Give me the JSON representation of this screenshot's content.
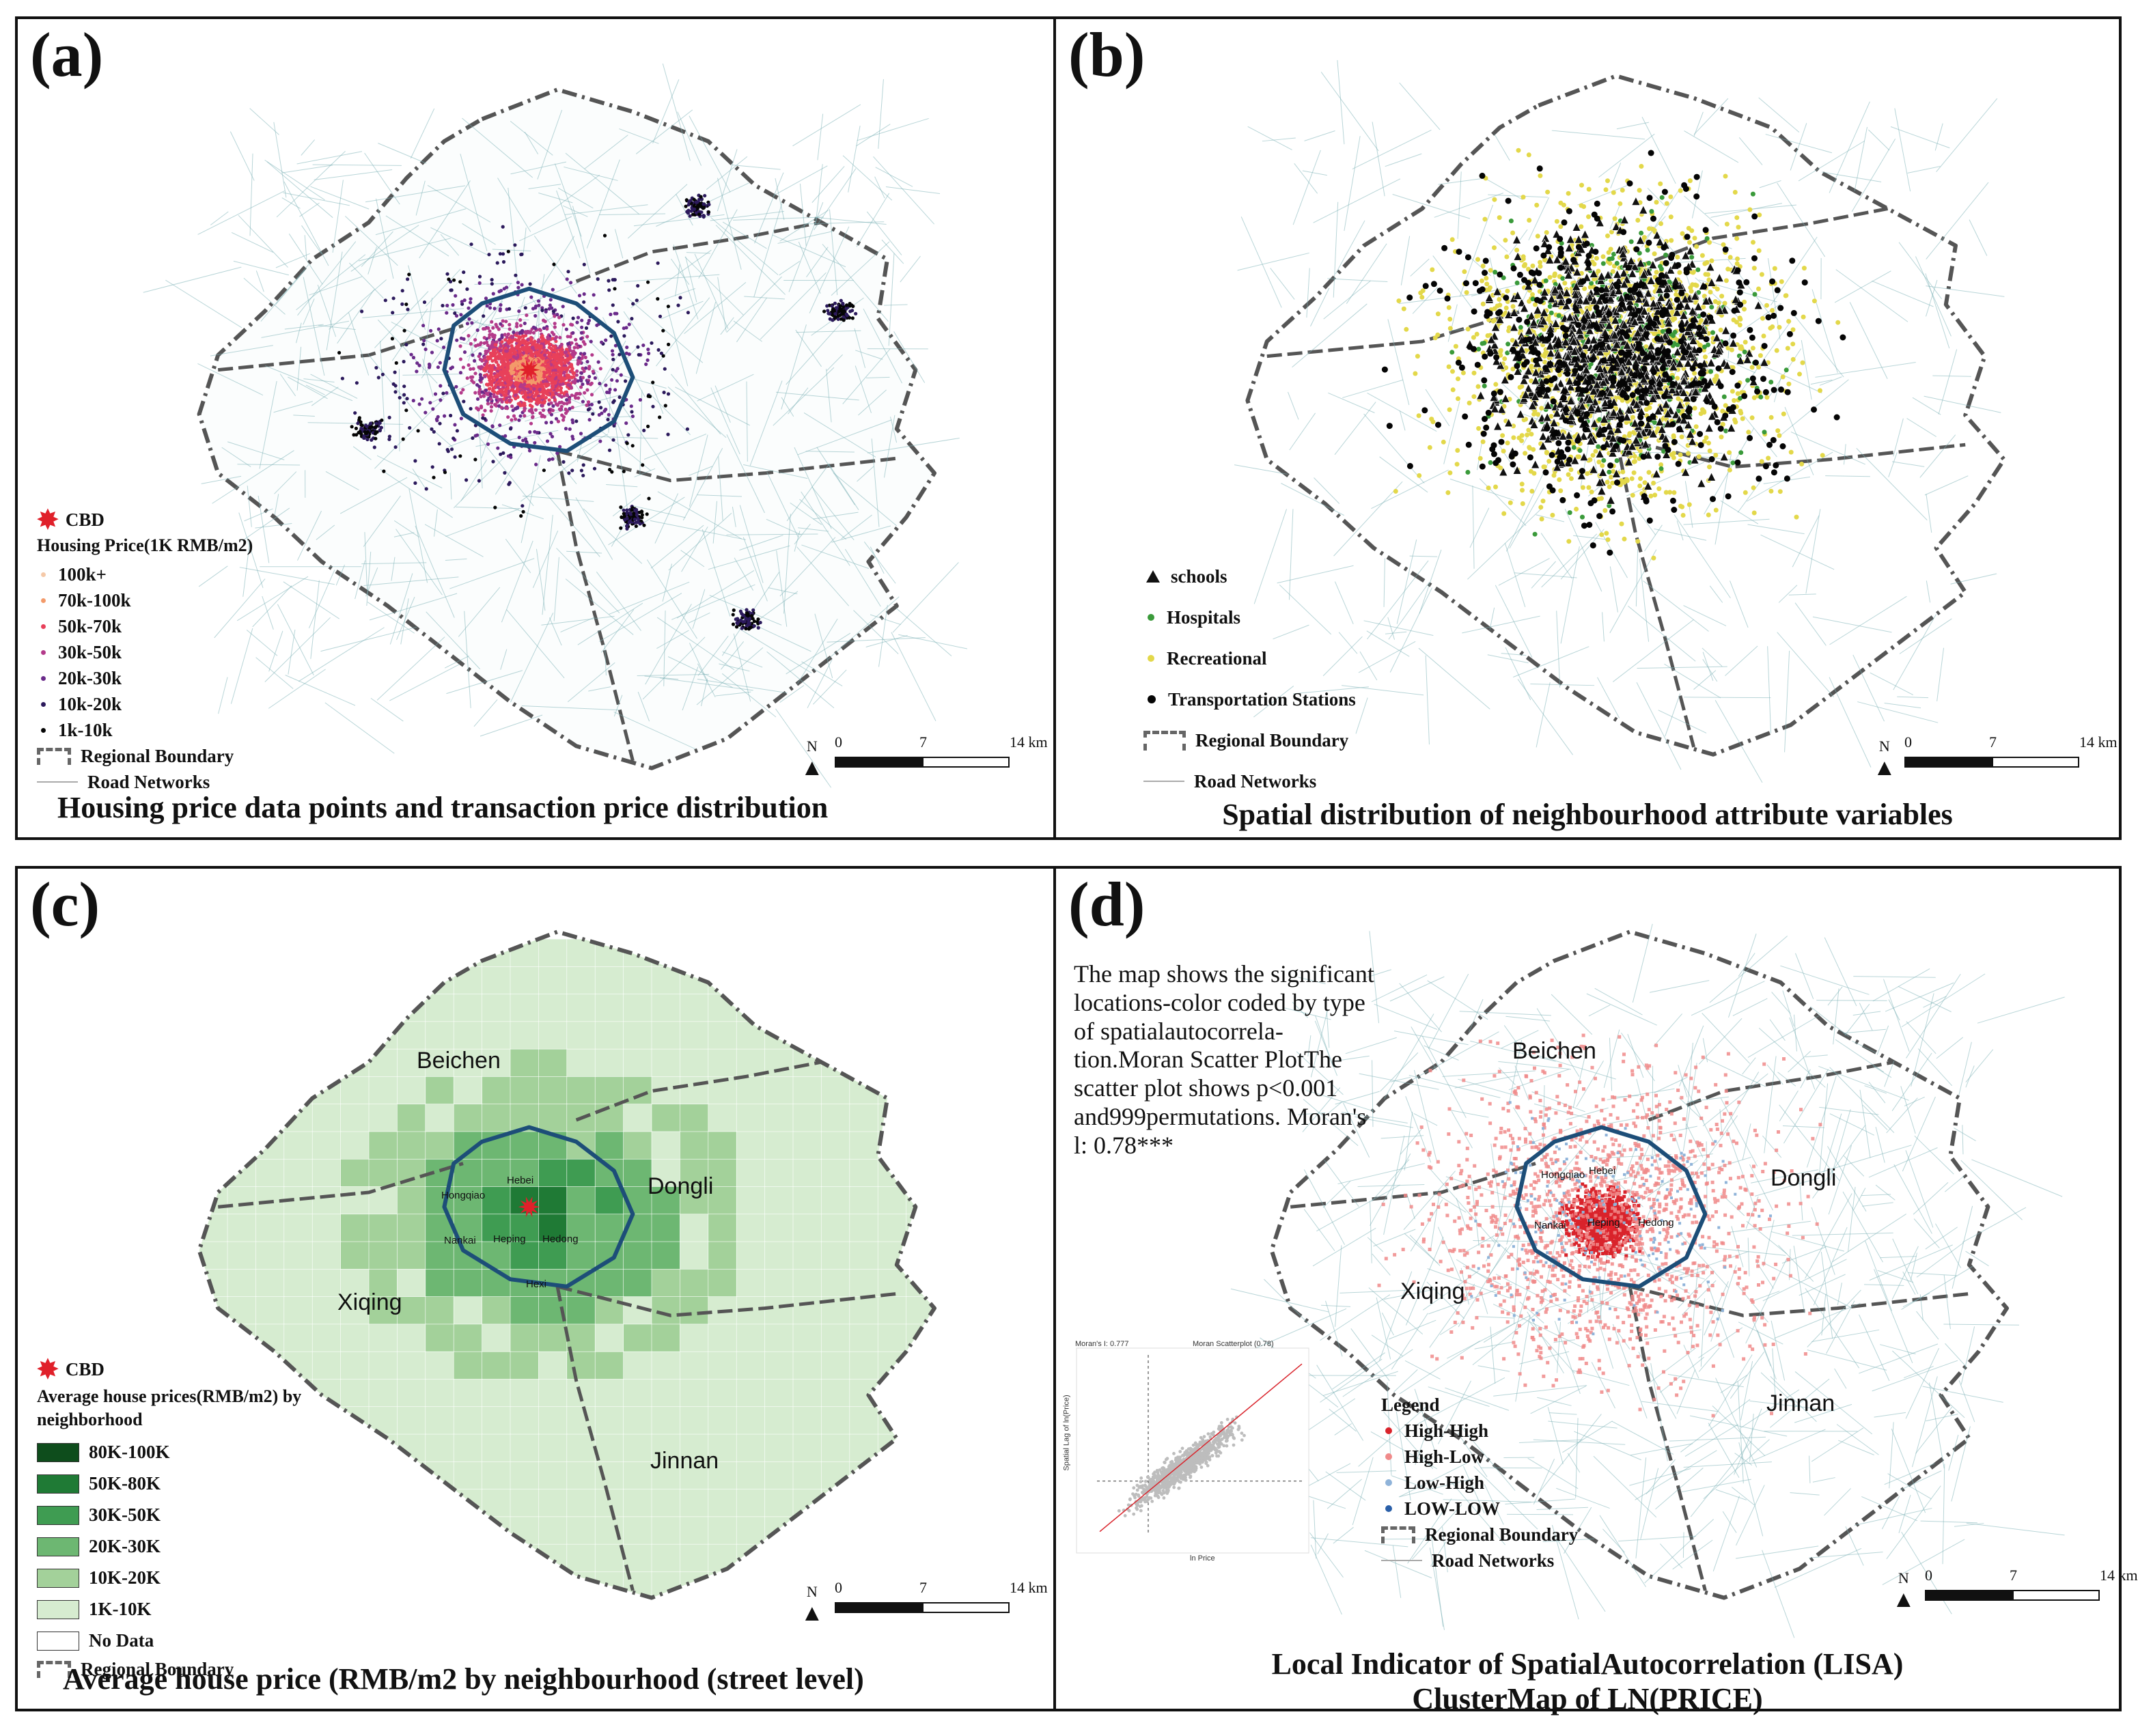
{
  "colors": {
    "boundary": "#555555",
    "inner_boundary": "#1d4e78",
    "road": "#7fb3b8",
    "cbd": "#e0202a",
    "green_scale": [
      "#0e4d1c",
      "#1f7a35",
      "#3f9c52",
      "#6db772",
      "#a3d19a",
      "#d6ecd0",
      "#ffffff"
    ],
    "lisa": {
      "high_high": "#d9232b",
      "high_low": "#f08a8a",
      "low_high": "#8fb3d9",
      "low_low": "#2a5fa8"
    }
  },
  "panel_a": {
    "label": "(a)",
    "caption": "Housing price data points and transaction price distribution",
    "legend": {
      "cbd": "CBD",
      "title": "Housing Price(1K RMB/m2)",
      "items": [
        {
          "label": "100k+",
          "color": "#f5c9a8"
        },
        {
          "label": "70k-100k",
          "color": "#f39a6a"
        },
        {
          "label": "50k-70k",
          "color": "#e8405a"
        },
        {
          "label": "30k-50k",
          "color": "#b33a8a"
        },
        {
          "label": "20k-30k",
          "color": "#6a2a8a"
        },
        {
          "label": "10k-20k",
          "color": "#2c1a5c"
        },
        {
          "label": "1k-10k",
          "color": "#050505"
        }
      ],
      "boundary": "Regional Boundary",
      "road": "Road Networks"
    },
    "scale": {
      "n": "N",
      "ticks": [
        "0",
        "7",
        "14 km"
      ]
    }
  },
  "panel_b": {
    "label": "(b)",
    "caption": "Spatial distribution of neighbourhood attribute variables",
    "legend": {
      "items": [
        {
          "label": "schools",
          "symbol": "triangle",
          "color": "#111111"
        },
        {
          "label": "Hospitals",
          "symbol": "dot",
          "color": "#3a9a3a"
        },
        {
          "label": "Recreational",
          "symbol": "dot",
          "color": "#e3d84a"
        },
        {
          "label": "Transportation Stations",
          "symbol": "dot",
          "color": "#050505"
        }
      ],
      "boundary": "Regional Boundary",
      "road": "Road Networks"
    },
    "scale": {
      "n": "N",
      "ticks": [
        "0",
        "7",
        "14 km"
      ]
    }
  },
  "panel_c": {
    "label": "(c)",
    "caption": "Average house price (RMB/m2 by neighbourhood  (street level)",
    "districts": [
      "Beichen",
      "Dongli",
      "Xiqing",
      "Jinnan"
    ],
    "inner_districts": [
      "Hebei",
      "Hongqiao",
      "Nankai",
      "Heping",
      "Hedong",
      "Hexi"
    ],
    "legend": {
      "cbd": "CBD",
      "title": "Average house prices(RMB/m2) by neighborhood",
      "items": [
        {
          "label": "80K-100K",
          "color": "#0e4d1c"
        },
        {
          "label": "50K-80K",
          "color": "#1f7a35"
        },
        {
          "label": "30K-50K",
          "color": "#3f9c52"
        },
        {
          "label": "20K-30K",
          "color": "#6db772"
        },
        {
          "label": "10K-20K",
          "color": "#a3d19a"
        },
        {
          "label": "1K-10K",
          "color": "#d6ecd0"
        },
        {
          "label": "No Data",
          "color": "#ffffff"
        }
      ],
      "boundary": "Regional Boundary"
    },
    "scale": {
      "n": "N",
      "ticks": [
        "0",
        "7",
        "14 km"
      ]
    }
  },
  "panel_d": {
    "label": "(d)",
    "caption_line1": "Local Indicator of SpatialAutocorrelation (LISA)",
    "caption_line2": "ClusterMap of LN(PRICE)",
    "note": "The map shows the significant locations-color coded by type of spatialautocorrela-tion.Moran Scatter PlotThe scatter plot shows p<0.001 and999permutations. Moran's l: 0.78***",
    "districts": [
      "Beichen",
      "Dongli",
      "Xiqing",
      "Jinnan"
    ],
    "inner_districts": [
      "Hongqiao",
      "Hebei",
      "Nankai",
      "Heping",
      "Hedong"
    ],
    "inset": {
      "title_left": "Moran's I: 0.777",
      "title_right": "Moran Scatterplot (0.78)",
      "xlabel": "ln Price",
      "ylabel": "Spatial Lag of ln(Price)"
    },
    "legend": {
      "title": "Legend",
      "items": [
        {
          "label": "High-High",
          "color": "#d9232b"
        },
        {
          "label": "High-Low",
          "color": "#f08a8a"
        },
        {
          "label": "Low-High",
          "color": "#8fb3d9"
        },
        {
          "label": "LOW-LOW",
          "color": "#2a5fa8"
        }
      ],
      "boundary": "Regional Boundary",
      "road": "Road Networks"
    },
    "scale": {
      "n": "N",
      "ticks": [
        "0",
        "7",
        "14 km"
      ]
    }
  }
}
